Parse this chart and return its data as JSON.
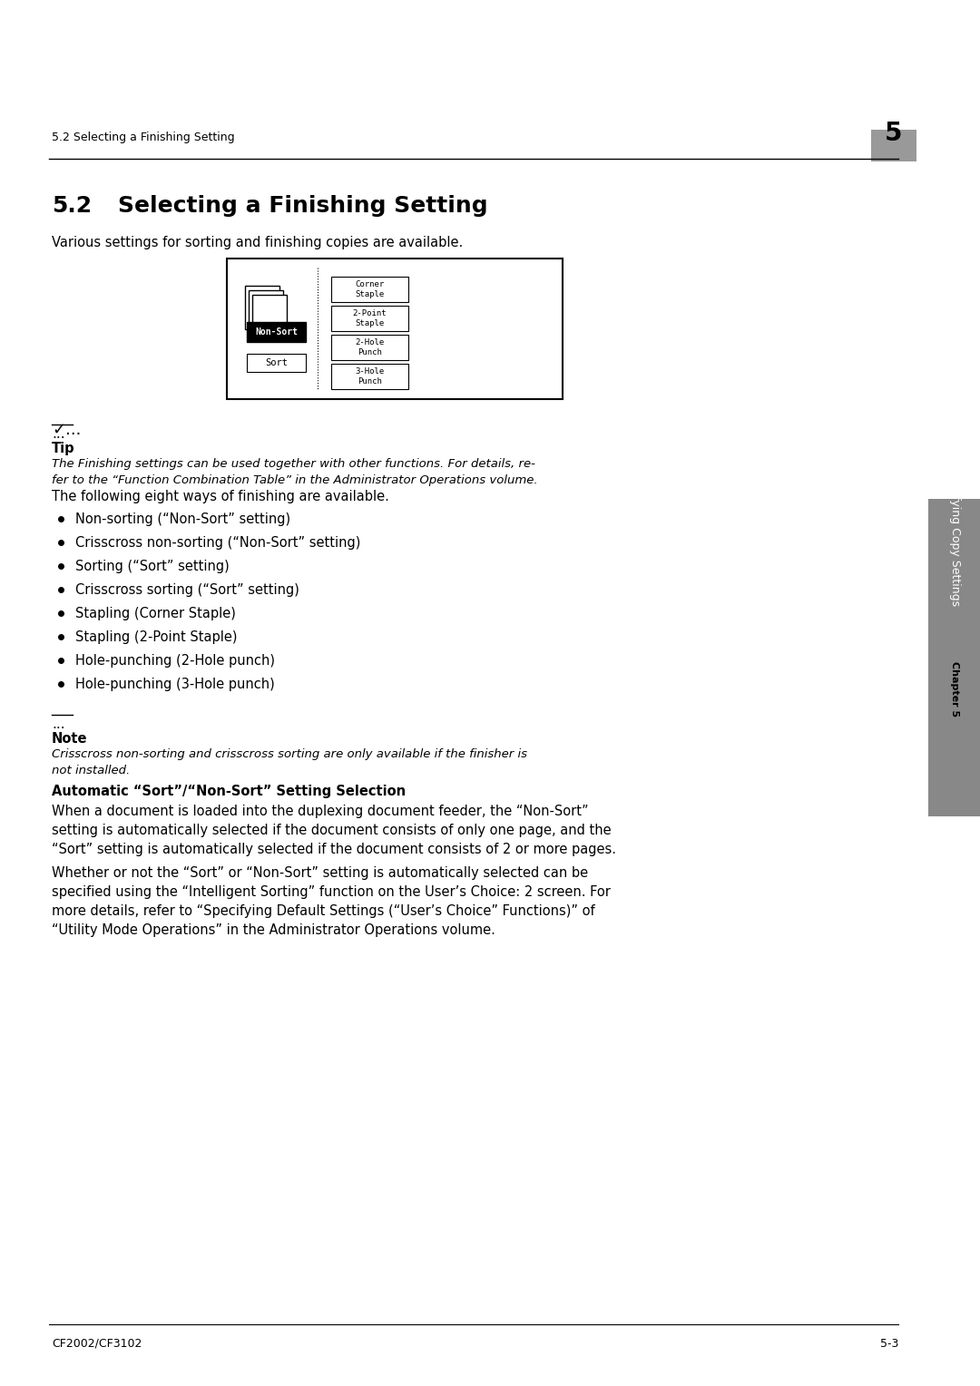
{
  "page_bg": "#ffffff",
  "header_text": "5.2 Selecting a Finishing Setting",
  "header_chapter": "5",
  "header_chapter_bg": "#aaaaaa",
  "section_number": "5.2",
  "section_title": "Selecting a Finishing Setting",
  "intro_text": "Various settings for sorting and finishing copies are available.",
  "tip_symbol": "...",
  "tip_title": "Tip",
  "tip_body": "The Finishing settings can be used together with other functions. For details, re-\nfer to the “Function Combination Table” in the Administrator Operations volume.",
  "following_text": "The following eight ways of finishing are available.",
  "bullets": [
    "Non-sorting (“Non-Sort” setting)",
    "Crisscross non-sorting (“Non-Sort” setting)",
    "Sorting (“Sort” setting)",
    "Crisscross sorting (“Sort” setting)",
    "Stapling (Corner Staple)",
    "Stapling (2-Point Staple)",
    "Hole-punching (2-Hole punch)",
    "Hole-punching (3-Hole punch)"
  ],
  "note_title": "Note",
  "note_body": "Crisscross non-sorting and crisscross sorting are only available if the finisher is\nnot installed.",
  "auto_sort_title": "Automatic “Sort”/“Non-Sort” Setting Selection",
  "auto_sort_para1": "When a document is loaded into the duplexing document feeder, the “Non-Sort”\nsetting is automatically selected if the document consists of only one page, and the\n“Sort” setting is automatically selected if the document consists of 2 or more pages.",
  "auto_sort_para2": "Whether or not the “Sort” or “Non-Sort” setting is automatically selected can be\nspecified using the “Intelligent Sorting” function on the User’s Choice: 2 screen. For\nmore details, refer to “Specifying Default Settings (“User’s Choice” Functions)” of\n“Utility Mode Operations” in the Administrator Operations volume.",
  "footer_left": "CF2002/CF3102",
  "footer_right": "5-3",
  "sidebar_text": "Specifying Copy Settings",
  "sidebar_chapter": "Chapter 5"
}
